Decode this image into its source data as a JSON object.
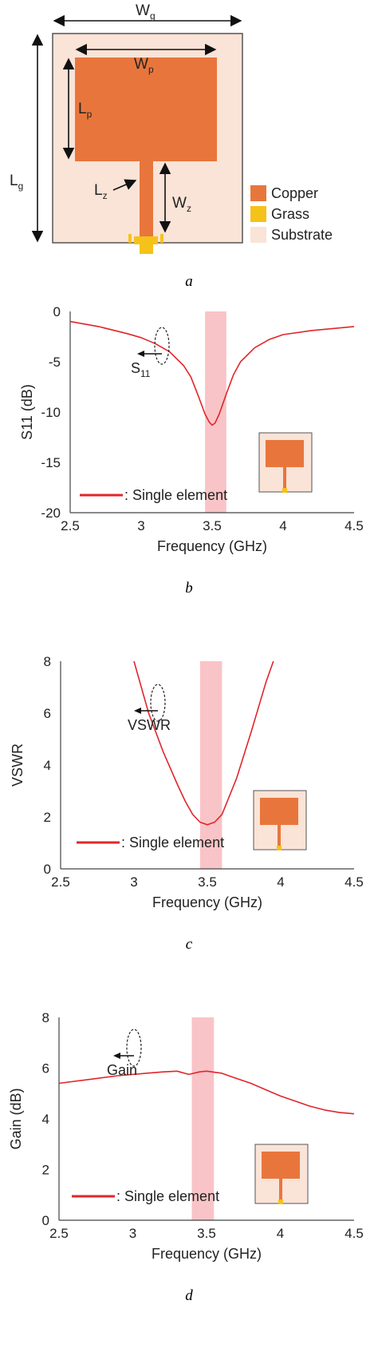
{
  "antenna": {
    "dimension_labels": {
      "wg": {
        "main": "W",
        "sub": "g"
      },
      "wp": {
        "main": "W",
        "sub": "p"
      },
      "lp": {
        "main": "L",
        "sub": "p"
      },
      "lg": {
        "main": "L",
        "sub": "g"
      },
      "lz": {
        "main": "L",
        "sub": "z"
      },
      "wz": {
        "main": "W",
        "sub": "z"
      }
    },
    "legend": [
      {
        "label": "Copper",
        "color": "#E8763C"
      },
      {
        "label": "Grass",
        "color": "#F5C21A"
      },
      {
        "label": "Substrate",
        "color": "#FAE3D7"
      }
    ],
    "caption": "a"
  },
  "colors": {
    "curve": "#E0262B",
    "band": "#F9C4C7",
    "copper": "#E8763C",
    "substrate": "#FAE3D7",
    "feed": "#F5C21A"
  },
  "chart_data": [
    {
      "type": "line",
      "caption": "b",
      "xlabel": "Frequency (GHz)",
      "ylabel": "S11 (dB)",
      "xlim": [
        2.5,
        4.5
      ],
      "ylim": [
        -20,
        0
      ],
      "xticks": [
        "2.5",
        "3",
        "3.5",
        "4",
        "4.5"
      ],
      "yticks": [
        "0",
        "-5",
        "-10",
        "-15",
        "-20"
      ],
      "band": [
        3.45,
        3.6
      ],
      "annotation": {
        "main": "S",
        "sub": "11",
        "x": 3.12,
        "y": -6.2
      },
      "legend": ": Single element",
      "series": [
        {
          "name": "Single element",
          "x": [
            2.5,
            2.7,
            2.9,
            3.0,
            3.1,
            3.2,
            3.3,
            3.35,
            3.4,
            3.45,
            3.48,
            3.5,
            3.52,
            3.55,
            3.6,
            3.65,
            3.7,
            3.8,
            3.9,
            4.0,
            4.2,
            4.5
          ],
          "y": [
            -1.0,
            -1.5,
            -2.2,
            -2.6,
            -3.2,
            -4.0,
            -5.4,
            -6.5,
            -8.3,
            -10.2,
            -11.0,
            -11.3,
            -11.1,
            -10.2,
            -8.2,
            -6.3,
            -5.0,
            -3.6,
            -2.8,
            -2.3,
            -1.9,
            -1.5
          ]
        }
      ]
    },
    {
      "type": "line",
      "caption": "c",
      "xlabel": "Frequency (GHz)",
      "ylabel": "VSWR",
      "xlim": [
        2.5,
        4.5
      ],
      "ylim": [
        0,
        8
      ],
      "xticks": [
        "2.5",
        "3",
        "3.5",
        "4",
        "4.5"
      ],
      "yticks": [
        "0",
        "2",
        "4",
        "6",
        "8"
      ],
      "band": [
        3.45,
        3.6
      ],
      "annotation": {
        "main": "VSWR",
        "x": 3.05,
        "y": 3.7
      },
      "legend": ": Single element",
      "series": [
        {
          "name": "Single element",
          "x": [
            3.0,
            3.1,
            3.2,
            3.3,
            3.35,
            3.4,
            3.45,
            3.5,
            3.55,
            3.6,
            3.7,
            3.8,
            3.9,
            3.95
          ],
          "y": [
            8.0,
            6.0,
            4.5,
            3.2,
            2.6,
            2.1,
            1.8,
            1.7,
            1.8,
            2.1,
            3.5,
            5.3,
            7.2,
            8.0
          ]
        }
      ]
    },
    {
      "type": "line",
      "caption": "d",
      "xlabel": "Frequency (GHz)",
      "ylabel": "Gain (dB)",
      "xlim": [
        2.5,
        4.5
      ],
      "ylim": [
        0,
        8
      ],
      "xticks": [
        "2.5",
        "3",
        "3.5",
        "4",
        "4.5"
      ],
      "yticks": [
        "0",
        "2",
        "4",
        "6",
        "8"
      ],
      "band": [
        3.4,
        3.55
      ],
      "annotation": {
        "main": "Gain",
        "x": 2.82,
        "y": 5.0
      },
      "legend": ": Single element",
      "series": [
        {
          "name": "Single element",
          "x": [
            2.5,
            2.7,
            2.9,
            3.1,
            3.2,
            3.3,
            3.38,
            3.45,
            3.5,
            3.6,
            3.7,
            3.8,
            3.9,
            4.0,
            4.1,
            4.2,
            4.3,
            4.4,
            4.5
          ],
          "y": [
            5.4,
            5.55,
            5.7,
            5.8,
            5.85,
            5.88,
            5.75,
            5.85,
            5.88,
            5.8,
            5.6,
            5.4,
            5.15,
            4.9,
            4.7,
            4.5,
            4.35,
            4.25,
            4.2
          ]
        }
      ]
    }
  ]
}
